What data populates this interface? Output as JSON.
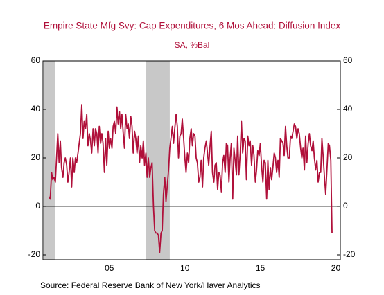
{
  "chart_data": {
    "type": "line",
    "title": "Empire State Mfg Svy: Cap Expenditures, 6 Mos Ahead: Diffusion Index",
    "subtitle": "SA, %Bal",
    "source": "Source:  Federal Reserve Bank of New York/Haver Analytics",
    "color": "#b0103a",
    "shaded_regions": [
      [
        2001.17,
        2001.92
      ],
      [
        2007.92,
        2009.5
      ]
    ],
    "shade_color": "#c8c8c8",
    "xlim": [
      2001.1,
      2020.8
    ],
    "xticks": [
      {
        "value": 2005.5,
        "label": "05"
      },
      {
        "value": 2010.5,
        "label": "10"
      },
      {
        "value": 2015.5,
        "label": "15"
      },
      {
        "value": 2020.5,
        "label": "20"
      }
    ],
    "ylim": [
      -22,
      60
    ],
    "yticks": [
      60,
      40,
      20,
      0,
      -20
    ],
    "x": [
      2001.5,
      2001.58,
      2001.67,
      2001.75,
      2001.83,
      2001.92,
      2002,
      2002.08,
      2002.17,
      2002.25,
      2002.33,
      2002.42,
      2002.5,
      2002.58,
      2002.67,
      2002.75,
      2002.83,
      2002.92,
      2003,
      2003.08,
      2003.17,
      2003.25,
      2003.33,
      2003.42,
      2003.5,
      2003.58,
      2003.67,
      2003.75,
      2003.83,
      2003.92,
      2004,
      2004.08,
      2004.17,
      2004.25,
      2004.33,
      2004.42,
      2004.5,
      2004.58,
      2004.67,
      2004.75,
      2004.83,
      2004.92,
      2005,
      2005.08,
      2005.17,
      2005.25,
      2005.33,
      2005.42,
      2005.5,
      2005.58,
      2005.67,
      2005.75,
      2005.83,
      2005.92,
      2006,
      2006.08,
      2006.17,
      2006.25,
      2006.33,
      2006.42,
      2006.5,
      2006.58,
      2006.67,
      2006.75,
      2006.83,
      2006.92,
      2007,
      2007.08,
      2007.17,
      2007.25,
      2007.33,
      2007.42,
      2007.5,
      2007.58,
      2007.67,
      2007.75,
      2007.83,
      2007.92,
      2008,
      2008.08,
      2008.17,
      2008.25,
      2008.33,
      2008.42,
      2008.5,
      2008.58,
      2008.67,
      2008.75,
      2008.83,
      2008.92,
      2009,
      2009.08,
      2009.17,
      2009.25,
      2009.33,
      2009.42,
      2009.5,
      2009.58,
      2009.67,
      2009.75,
      2009.83,
      2009.92,
      2010,
      2010.08,
      2010.17,
      2010.25,
      2010.33,
      2010.42,
      2010.5,
      2010.58,
      2010.67,
      2010.75,
      2010.83,
      2010.92,
      2011,
      2011.08,
      2011.17,
      2011.25,
      2011.33,
      2011.42,
      2011.5,
      2011.58,
      2011.67,
      2011.75,
      2011.83,
      2011.92,
      2012,
      2012.08,
      2012.17,
      2012.25,
      2012.33,
      2012.42,
      2012.5,
      2012.58,
      2012.67,
      2012.75,
      2012.83,
      2012.92,
      2013,
      2013.08,
      2013.17,
      2013.25,
      2013.33,
      2013.42,
      2013.5,
      2013.58,
      2013.67,
      2013.75,
      2013.83,
      2013.92,
      2014,
      2014.08,
      2014.17,
      2014.25,
      2014.33,
      2014.42,
      2014.5,
      2014.58,
      2014.67,
      2014.75,
      2014.83,
      2014.92,
      2015,
      2015.08,
      2015.17,
      2015.25,
      2015.33,
      2015.42,
      2015.5,
      2015.58,
      2015.67,
      2015.75,
      2015.83,
      2015.92,
      2016,
      2016.08,
      2016.17,
      2016.25,
      2016.33,
      2016.42,
      2016.5,
      2016.58,
      2016.67,
      2016.75,
      2016.83,
      2016.92,
      2017,
      2017.08,
      2017.17,
      2017.25,
      2017.33,
      2017.42,
      2017.5,
      2017.58,
      2017.67,
      2017.75,
      2017.83,
      2017.92,
      2018,
      2018.08,
      2018.17,
      2018.25,
      2018.33,
      2018.42,
      2018.5,
      2018.58,
      2018.67,
      2018.75,
      2018.83,
      2018.92,
      2019,
      2019.08,
      2019.17,
      2019.25,
      2019.33,
      2019.42,
      2019.5,
      2019.58,
      2019.67,
      2019.75,
      2019.83,
      2019.92,
      2020,
      2020.08,
      2020.17,
      2020.25
    ],
    "values": [
      4,
      3,
      14,
      11,
      12,
      10,
      20,
      30,
      18,
      27,
      16,
      12,
      18,
      20,
      17,
      10,
      14,
      20,
      8,
      20,
      14,
      20,
      18,
      22,
      26,
      30,
      42,
      28,
      35,
      32,
      38,
      25,
      30,
      27,
      22,
      32,
      25,
      32,
      30,
      22,
      33,
      26,
      30,
      26,
      14,
      28,
      17,
      31,
      24,
      28,
      24,
      33,
      35,
      30,
      41,
      34,
      39,
      32,
      38,
      30,
      24,
      38,
      32,
      34,
      28,
      37,
      33,
      22,
      31,
      28,
      22,
      29,
      18,
      25,
      20,
      27,
      17,
      22,
      12,
      20,
      12,
      16,
      18,
      0,
      -10,
      -11,
      -11,
      -12,
      -19,
      -11,
      -10,
      5,
      12,
      2,
      8,
      15,
      24,
      28,
      33,
      26,
      32,
      38,
      33,
      20,
      29,
      30,
      36,
      28,
      20,
      14,
      22,
      18,
      28,
      32,
      25,
      30,
      29,
      20,
      18,
      10,
      12,
      19,
      8,
      20,
      24,
      27,
      22,
      17,
      25,
      31,
      14,
      10,
      17,
      18,
      7,
      14,
      13,
      6,
      18,
      21,
      14,
      26,
      25,
      10,
      20,
      26,
      3,
      24,
      19,
      13,
      29,
      13,
      22,
      35,
      22,
      28,
      27,
      11,
      29,
      25,
      27,
      17,
      25,
      21,
      10,
      15,
      23,
      21,
      26,
      17,
      10,
      19,
      18,
      3,
      19,
      7,
      16,
      11,
      16,
      22,
      20,
      14,
      19,
      12,
      28,
      27,
      26,
      21,
      33,
      25,
      20,
      20,
      29,
      28,
      31,
      34,
      33,
      28,
      32,
      30,
      24,
      20,
      24,
      15,
      29,
      18,
      26,
      30,
      25,
      23,
      27,
      20,
      15,
      19,
      10,
      14,
      14,
      28,
      20,
      12,
      5,
      16,
      26,
      25,
      19,
      -11
    ]
  }
}
